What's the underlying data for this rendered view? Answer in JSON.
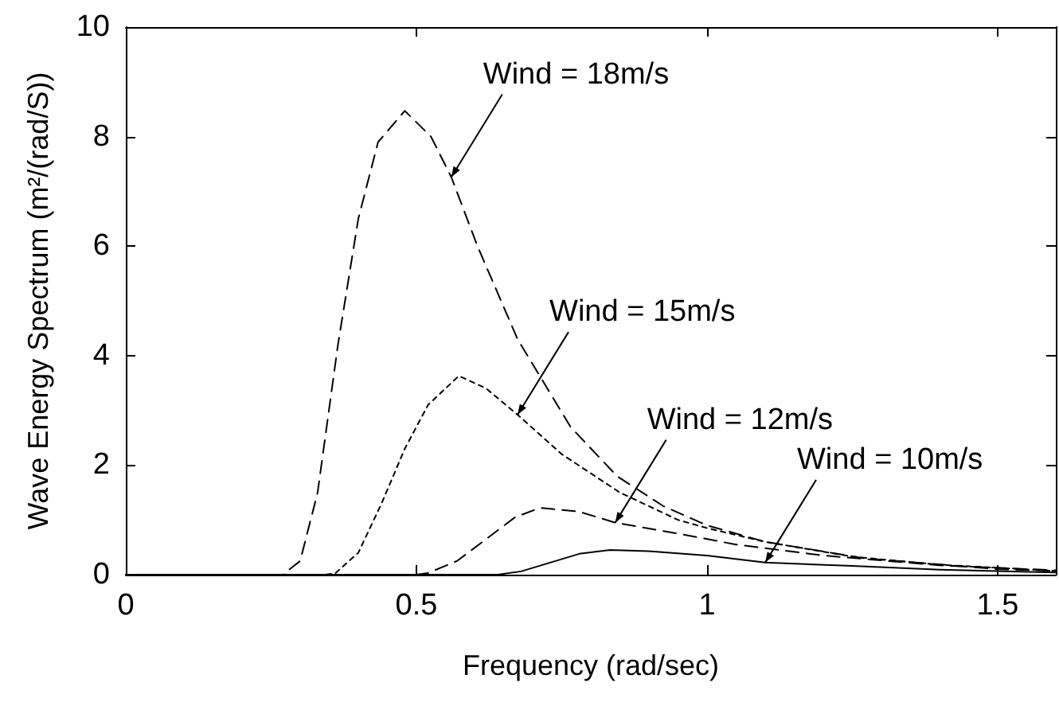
{
  "chart_data": {
    "type": "line",
    "xlabel": "Frequency (rad/sec)",
    "ylabel": "Wave Energy Spectrum (m²/(rad/S))",
    "xlim": [
      0,
      1.6
    ],
    "xticks": [
      0,
      0.5,
      1,
      1.5
    ],
    "ylim": [
      0,
      10
    ],
    "yticks": [
      0,
      2,
      4,
      6,
      8,
      10
    ],
    "marker": "none",
    "series": [
      {
        "color": "#000000",
        "line_style": "dashed",
        "x": [
          0,
          0.27,
          0.3,
          0.33,
          0.365,
          0.4,
          0.434,
          0.48,
          0.525,
          0.56,
          0.605,
          0.674,
          0.765,
          0.845,
          0.925,
          1.0,
          1.1,
          1.27,
          1.5,
          1.6
        ],
        "values": [
          0,
          0,
          0.25,
          1.5,
          4.2,
          6.5,
          7.9,
          8.47,
          8.0,
          7.26,
          6.0,
          4.3,
          2.7,
          1.8,
          1.25,
          0.9,
          0.6,
          0.3,
          0.1,
          0.07
        ]
      },
      {
        "color": "#000000",
        "line_style": "dotted",
        "x": [
          0,
          0.34,
          0.36,
          0.4,
          0.44,
          0.48,
          0.52,
          0.573,
          0.62,
          0.674,
          0.75,
          0.85,
          0.95,
          1.0,
          1.1,
          1.25,
          1.4,
          1.6
        ],
        "values": [
          0,
          0,
          0.02,
          0.4,
          1.3,
          2.3,
          3.1,
          3.63,
          3.4,
          2.92,
          2.2,
          1.5,
          1.0,
          0.85,
          0.6,
          0.33,
          0.18,
          0.07
        ]
      },
      {
        "color": "#000000",
        "line_style": "dashed",
        "x": [
          0,
          0.5,
          0.52,
          0.57,
          0.62,
          0.67,
          0.713,
          0.78,
          0.842,
          0.95,
          1.05,
          1.2,
          1.4,
          1.6
        ],
        "values": [
          0,
          0,
          0.03,
          0.25,
          0.65,
          1.05,
          1.22,
          1.15,
          0.95,
          0.75,
          0.55,
          0.35,
          0.17,
          0.08
        ]
      },
      {
        "color": "#000000",
        "line_style": "solid",
        "x": [
          0,
          0.64,
          0.68,
          0.73,
          0.78,
          0.833,
          0.9,
          1.0,
          1.1,
          1.25,
          1.4,
          1.6
        ],
        "values": [
          0,
          0,
          0.06,
          0.22,
          0.38,
          0.45,
          0.43,
          0.35,
          0.22,
          0.16,
          0.09,
          0.04
        ]
      }
    ],
    "annotations": [
      {
        "text": "Wind = 18m/s",
        "x": 0.56,
        "y": 7.26
      },
      {
        "text": "Wind = 15m/s",
        "x": 0.674,
        "y": 2.92
      },
      {
        "text": "Wind = 12m/s",
        "x": 0.842,
        "y": 0.95
      },
      {
        "text": "Wind = 10m/s",
        "x": 1.1,
        "y": 0.22
      }
    ]
  }
}
